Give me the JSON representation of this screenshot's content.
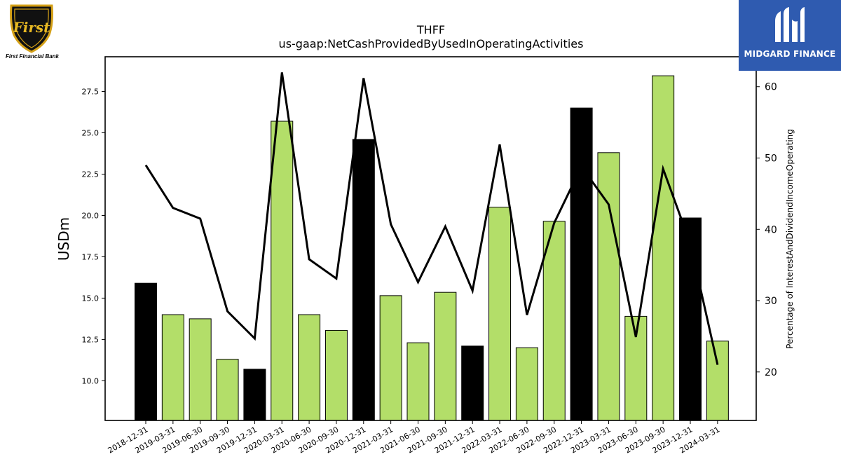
{
  "logos": {
    "left_name": "First Financial Bank",
    "left_mark": "First",
    "right_name": "MIDGARD FINANCE"
  },
  "colors": {
    "bar_highlight": "#000000",
    "bar_normal": "#b3de69",
    "line": "#000000"
  },
  "chart_data": {
    "type": "bar",
    "title": "THFF",
    "subtitle": "us-gaap:NetCashProvidedByUsedInOperatingActivities",
    "ylabel": "USDm",
    "y2label": "Percentage of InterestAndDividendIncomeOperating",
    "categories": [
      "2018-12-31",
      "2019-03-31",
      "2019-06-30",
      "2019-09-30",
      "2019-12-31",
      "2020-03-31",
      "2020-06-30",
      "2020-09-30",
      "2020-12-31",
      "2021-03-31",
      "2021-06-30",
      "2021-09-30",
      "2021-12-31",
      "2022-03-31",
      "2022-06-30",
      "2022-09-30",
      "2022-12-31",
      "2023-03-31",
      "2023-06-30",
      "2023-09-30",
      "2023-12-31",
      "2024-03-31"
    ],
    "values": [
      15.9,
      14.0,
      13.75,
      11.3,
      10.7,
      25.7,
      14.0,
      13.05,
      24.6,
      15.15,
      12.3,
      15.35,
      12.1,
      20.5,
      12.0,
      19.65,
      26.5,
      23.8,
      13.9,
      28.45,
      19.85,
      12.4
    ],
    "highlight": [
      true,
      false,
      false,
      false,
      true,
      false,
      false,
      false,
      true,
      false,
      false,
      false,
      true,
      false,
      false,
      false,
      true,
      false,
      false,
      false,
      true,
      false
    ],
    "line_values": [
      49.0,
      43.0,
      41.5,
      28.5,
      24.7,
      62.0,
      35.8,
      33.1,
      61.2,
      40.7,
      32.6,
      40.4,
      31.4,
      51.9,
      28.0,
      40.9,
      48.8,
      43.5,
      24.9,
      48.5,
      38.0,
      21.0
    ],
    "ylim": [
      7.6,
      29.6
    ],
    "y2lim": [
      13.2,
      64.2
    ],
    "yticks": [
      "10.0",
      "12.5",
      "15.0",
      "17.5",
      "20.0",
      "22.5",
      "25.0",
      "27.5"
    ],
    "y2ticks": [
      "20",
      "30",
      "40",
      "50",
      "60"
    ],
    "grid": false,
    "legend": "none"
  }
}
